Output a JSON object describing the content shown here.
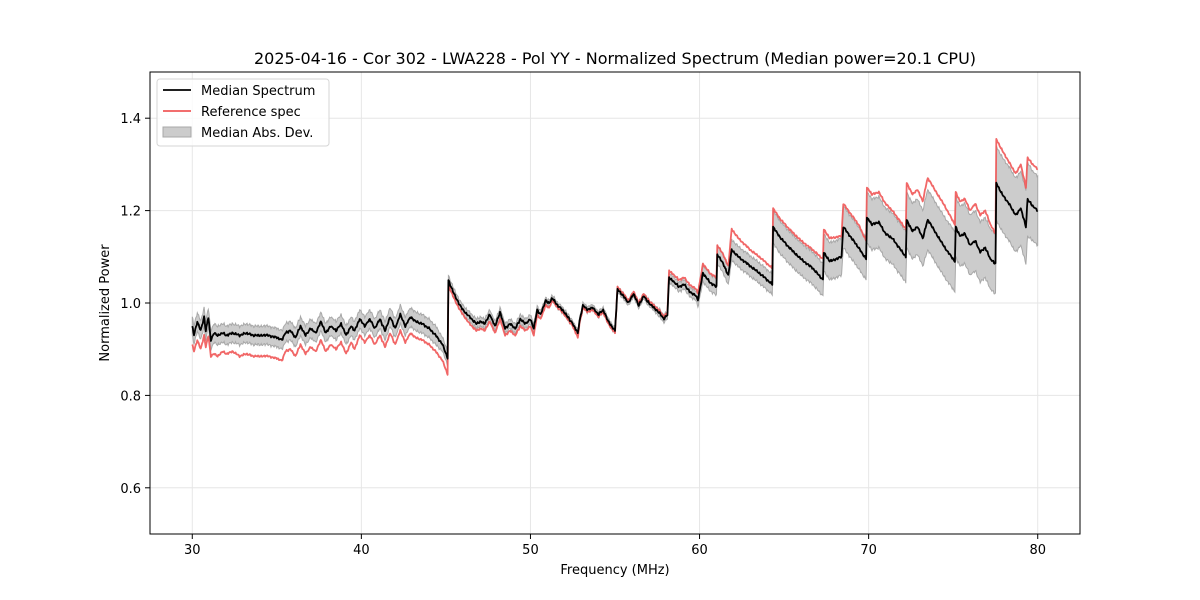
{
  "chart_data": {
    "type": "line",
    "title": "2025-04-16 - Cor 302 - LWA228 - Pol YY - Normalized Spectrum (Median power=20.1 CPU)",
    "xlabel": "Frequency (MHz)",
    "ylabel": "Normalized Power",
    "xlim": [
      27.5,
      82.5
    ],
    "ylim": [
      0.5,
      1.5
    ],
    "xticks": [
      30,
      40,
      50,
      60,
      70,
      80
    ],
    "xtick_labels": [
      "30",
      "40",
      "50",
      "60",
      "70",
      "80"
    ],
    "yticks": [
      0.6,
      0.8,
      1.0,
      1.2,
      1.4
    ],
    "ytick_labels": [
      "0.6",
      "0.8",
      "1.0",
      "1.2",
      "1.4"
    ],
    "grid": true,
    "legend": {
      "placement": "top-left",
      "entries": [
        {
          "label": "Median Spectrum",
          "kind": "line",
          "color": "#000000"
        },
        {
          "label": "Reference spec",
          "kind": "line",
          "color": "#f05a5a"
        },
        {
          "label": "Median Abs. Dev.",
          "kind": "band",
          "color": "#cccccc"
        }
      ]
    },
    "colors": {
      "median": "#000000",
      "reference": "#f05a5a",
      "mad_fill": "#cccccc",
      "mad_edge": "#a8a8a8",
      "grid": "#e6e6e6"
    },
    "series": [
      {
        "name": "Median Spectrum",
        "x": [
          30.0,
          30.1,
          30.3,
          30.5,
          30.7,
          30.8,
          30.95,
          31.1,
          31.3,
          31.5,
          31.8,
          32.0,
          32.4,
          32.8,
          33.2,
          33.6,
          34.0,
          34.5,
          35.0,
          35.3,
          35.5,
          35.8,
          36.1,
          36.4,
          36.7,
          37.0,
          37.3,
          37.6,
          37.9,
          38.2,
          38.5,
          38.8,
          39.1,
          39.4,
          39.6,
          39.9,
          40.2,
          40.5,
          40.8,
          41.1,
          41.4,
          41.7,
          42.0,
          42.3,
          42.6,
          42.9,
          43.2,
          43.6,
          44.0,
          44.4,
          44.8,
          45.1,
          45.15,
          45.3,
          45.6,
          46.0,
          46.4,
          46.8,
          47.1,
          47.3,
          47.6,
          47.9,
          48.2,
          48.5,
          48.8,
          49.1,
          49.4,
          49.7,
          50.0,
          50.2,
          50.4,
          50.6,
          50.9,
          51.1,
          51.3,
          51.6,
          51.9,
          52.2,
          52.5,
          52.8,
          52.9,
          53.1,
          53.4,
          53.7,
          54.0,
          54.3,
          54.6,
          55.0,
          55.15,
          55.5,
          55.8,
          56.1,
          56.4,
          56.7,
          57.0,
          57.3,
          57.6,
          57.9,
          58.1,
          58.2,
          58.5,
          58.8,
          59.1,
          59.4,
          59.8,
          59.9,
          60.2,
          60.6,
          61.0,
          61.05,
          61.4,
          61.7,
          61.9,
          62.3,
          63.0,
          63.7,
          64.3,
          64.35,
          64.7,
          65.3,
          66.0,
          66.7,
          67.3,
          67.35,
          67.7,
          68.4,
          68.5,
          69.0,
          69.4,
          69.85,
          69.9,
          70.2,
          70.6,
          71.0,
          71.4,
          71.8,
          72.2,
          72.25,
          72.6,
          72.9,
          73.2,
          73.45,
          73.5,
          74.0,
          74.5,
          75.1,
          75.15,
          75.4,
          75.7,
          76.0,
          76.3,
          76.6,
          76.9,
          77.2,
          77.5,
          77.55,
          77.9,
          78.3,
          78.7,
          79.0,
          79.3,
          79.4,
          79.7,
          80.0
        ],
        "values": [
          0.95,
          0.93,
          0.96,
          0.94,
          0.97,
          0.94,
          0.97,
          0.92,
          0.935,
          0.93,
          0.935,
          0.93,
          0.935,
          0.93,
          0.935,
          0.93,
          0.93,
          0.93,
          0.925,
          0.92,
          0.935,
          0.94,
          0.925,
          0.95,
          0.93,
          0.945,
          0.935,
          0.96,
          0.935,
          0.95,
          0.94,
          0.955,
          0.93,
          0.95,
          0.94,
          0.965,
          0.95,
          0.965,
          0.945,
          0.965,
          0.94,
          0.97,
          0.945,
          0.975,
          0.95,
          0.97,
          0.96,
          0.955,
          0.945,
          0.93,
          0.91,
          0.88,
          1.05,
          1.035,
          1.01,
          0.985,
          0.97,
          0.955,
          0.96,
          0.955,
          0.975,
          0.95,
          0.98,
          0.945,
          0.955,
          0.945,
          0.965,
          0.955,
          0.965,
          0.945,
          0.985,
          0.975,
          1.005,
          1.0,
          1.01,
          0.995,
          0.985,
          0.97,
          0.955,
          0.935,
          0.96,
          0.995,
          0.985,
          0.99,
          0.975,
          0.985,
          0.96,
          0.94,
          1.03,
          1.015,
          1.0,
          1.02,
          0.995,
          1.015,
          1.0,
          0.99,
          0.98,
          0.965,
          0.975,
          1.055,
          1.045,
          1.035,
          1.04,
          1.025,
          1.015,
          1.005,
          1.065,
          1.045,
          1.035,
          1.105,
          1.085,
          1.06,
          1.115,
          1.1,
          1.08,
          1.06,
          1.04,
          1.165,
          1.145,
          1.12,
          1.095,
          1.075,
          1.05,
          1.11,
          1.09,
          1.1,
          1.165,
          1.14,
          1.12,
          1.095,
          1.185,
          1.17,
          1.175,
          1.15,
          1.14,
          1.12,
          1.1,
          1.18,
          1.155,
          1.165,
          1.14,
          1.175,
          1.18,
          1.15,
          1.12,
          1.09,
          1.165,
          1.145,
          1.15,
          1.125,
          1.135,
          1.11,
          1.12,
          1.095,
          1.085,
          1.26,
          1.235,
          1.215,
          1.19,
          1.205,
          1.165,
          1.225,
          1.21,
          1.2
        ]
      },
      {
        "name": "Reference spec",
        "x": [
          30.0,
          30.1,
          30.3,
          30.5,
          30.7,
          30.8,
          30.95,
          31.1,
          31.3,
          31.5,
          31.8,
          32.0,
          32.4,
          32.8,
          33.2,
          33.6,
          34.0,
          34.5,
          35.0,
          35.3,
          35.5,
          35.8,
          36.1,
          36.4,
          36.7,
          37.0,
          37.3,
          37.6,
          37.9,
          38.2,
          38.5,
          38.8,
          39.1,
          39.4,
          39.6,
          39.9,
          40.2,
          40.5,
          40.8,
          41.1,
          41.4,
          41.7,
          42.0,
          42.3,
          42.6,
          42.9,
          43.2,
          43.6,
          44.0,
          44.4,
          44.8,
          45.1,
          45.15,
          45.3,
          45.6,
          46.0,
          46.4,
          46.8,
          47.1,
          47.3,
          47.6,
          47.9,
          48.2,
          48.5,
          48.8,
          49.1,
          49.4,
          49.7,
          50.0,
          50.2,
          50.4,
          50.6,
          50.9,
          51.1,
          51.3,
          51.6,
          51.9,
          52.2,
          52.5,
          52.8,
          52.9,
          53.1,
          53.4,
          53.7,
          54.0,
          54.3,
          54.6,
          55.0,
          55.15,
          55.5,
          55.8,
          56.1,
          56.4,
          56.7,
          57.0,
          57.3,
          57.6,
          57.9,
          58.1,
          58.2,
          58.5,
          58.8,
          59.1,
          59.4,
          59.8,
          59.9,
          60.2,
          60.6,
          61.0,
          61.05,
          61.4,
          61.7,
          61.9,
          62.3,
          63.0,
          63.7,
          64.3,
          64.35,
          64.7,
          65.3,
          66.0,
          66.7,
          67.3,
          67.35,
          67.7,
          68.4,
          68.5,
          69.0,
          69.4,
          69.85,
          69.9,
          70.2,
          70.6,
          71.0,
          71.4,
          71.8,
          72.2,
          72.25,
          72.6,
          72.9,
          73.2,
          73.45,
          73.5,
          74.0,
          74.5,
          75.1,
          75.15,
          75.4,
          75.7,
          76.0,
          76.3,
          76.6,
          76.9,
          77.2,
          77.5,
          77.55,
          77.9,
          78.3,
          78.7,
          79.0,
          79.3,
          79.4,
          79.7,
          80.0
        ],
        "values": [
          0.91,
          0.895,
          0.92,
          0.9,
          0.93,
          0.905,
          0.93,
          0.885,
          0.89,
          0.885,
          0.895,
          0.89,
          0.895,
          0.885,
          0.89,
          0.885,
          0.885,
          0.885,
          0.88,
          0.875,
          0.895,
          0.9,
          0.885,
          0.91,
          0.89,
          0.905,
          0.895,
          0.92,
          0.895,
          0.91,
          0.9,
          0.915,
          0.89,
          0.915,
          0.9,
          0.93,
          0.915,
          0.93,
          0.91,
          0.93,
          0.905,
          0.935,
          0.91,
          0.94,
          0.915,
          0.935,
          0.925,
          0.92,
          0.91,
          0.895,
          0.875,
          0.845,
          1.04,
          1.025,
          1.0,
          0.975,
          0.955,
          0.94,
          0.945,
          0.94,
          0.96,
          0.935,
          0.965,
          0.93,
          0.94,
          0.93,
          0.95,
          0.94,
          0.95,
          0.93,
          0.975,
          0.965,
          0.995,
          0.99,
          1.005,
          0.99,
          0.98,
          0.965,
          0.95,
          0.925,
          0.955,
          0.99,
          0.98,
          0.985,
          0.97,
          0.98,
          0.955,
          0.935,
          1.035,
          1.02,
          1.005,
          1.025,
          1.0,
          1.02,
          1.005,
          0.995,
          0.985,
          0.97,
          0.98,
          1.07,
          1.06,
          1.05,
          1.055,
          1.04,
          1.03,
          1.02,
          1.085,
          1.065,
          1.055,
          1.125,
          1.105,
          1.08,
          1.16,
          1.14,
          1.115,
          1.095,
          1.075,
          1.205,
          1.185,
          1.16,
          1.135,
          1.115,
          1.095,
          1.16,
          1.14,
          1.145,
          1.215,
          1.19,
          1.17,
          1.135,
          1.25,
          1.235,
          1.24,
          1.215,
          1.2,
          1.18,
          1.16,
          1.26,
          1.235,
          1.245,
          1.22,
          1.265,
          1.27,
          1.24,
          1.21,
          1.17,
          1.24,
          1.22,
          1.225,
          1.2,
          1.215,
          1.19,
          1.2,
          1.17,
          1.15,
          1.355,
          1.33,
          1.305,
          1.28,
          1.3,
          1.25,
          1.315,
          1.3,
          1.29
        ]
      },
      {
        "name": "Median Abs. Dev.",
        "kind": "band",
        "x_ref": "Median Spectrum",
        "half_width": [
          0.02,
          0.02,
          0.02,
          0.02,
          0.02,
          0.02,
          0.02,
          0.02,
          0.02,
          0.02,
          0.02,
          0.02,
          0.02,
          0.02,
          0.02,
          0.02,
          0.02,
          0.02,
          0.02,
          0.02,
          0.02,
          0.02,
          0.02,
          0.02,
          0.02,
          0.02,
          0.02,
          0.02,
          0.02,
          0.02,
          0.02,
          0.02,
          0.02,
          0.02,
          0.02,
          0.02,
          0.02,
          0.02,
          0.02,
          0.02,
          0.02,
          0.02,
          0.02,
          0.02,
          0.02,
          0.02,
          0.02,
          0.02,
          0.02,
          0.02,
          0.015,
          0.015,
          0.01,
          0.01,
          0.01,
          0.01,
          0.01,
          0.01,
          0.01,
          0.01,
          0.01,
          0.01,
          0.01,
          0.01,
          0.01,
          0.01,
          0.01,
          0.01,
          0.01,
          0.01,
          0.008,
          0.008,
          0.006,
          0.006,
          0.006,
          0.006,
          0.006,
          0.006,
          0.006,
          0.006,
          0.006,
          0.006,
          0.006,
          0.006,
          0.006,
          0.006,
          0.006,
          0.006,
          0.006,
          0.006,
          0.006,
          0.006,
          0.006,
          0.006,
          0.006,
          0.006,
          0.008,
          0.008,
          0.008,
          0.01,
          0.01,
          0.01,
          0.01,
          0.01,
          0.01,
          0.015,
          0.018,
          0.018,
          0.018,
          0.02,
          0.02,
          0.02,
          0.022,
          0.022,
          0.022,
          0.022,
          0.022,
          0.035,
          0.035,
          0.035,
          0.035,
          0.035,
          0.035,
          0.04,
          0.04,
          0.04,
          0.045,
          0.045,
          0.045,
          0.045,
          0.055,
          0.055,
          0.055,
          0.055,
          0.055,
          0.055,
          0.055,
          0.06,
          0.06,
          0.06,
          0.06,
          0.065,
          0.065,
          0.065,
          0.065,
          0.065,
          0.065,
          0.065,
          0.065,
          0.065,
          0.065,
          0.065,
          0.065,
          0.065,
          0.065,
          0.08,
          0.08,
          0.08,
          0.08,
          0.08,
          0.08,
          0.08,
          0.075,
          0.075
        ]
      }
    ]
  }
}
